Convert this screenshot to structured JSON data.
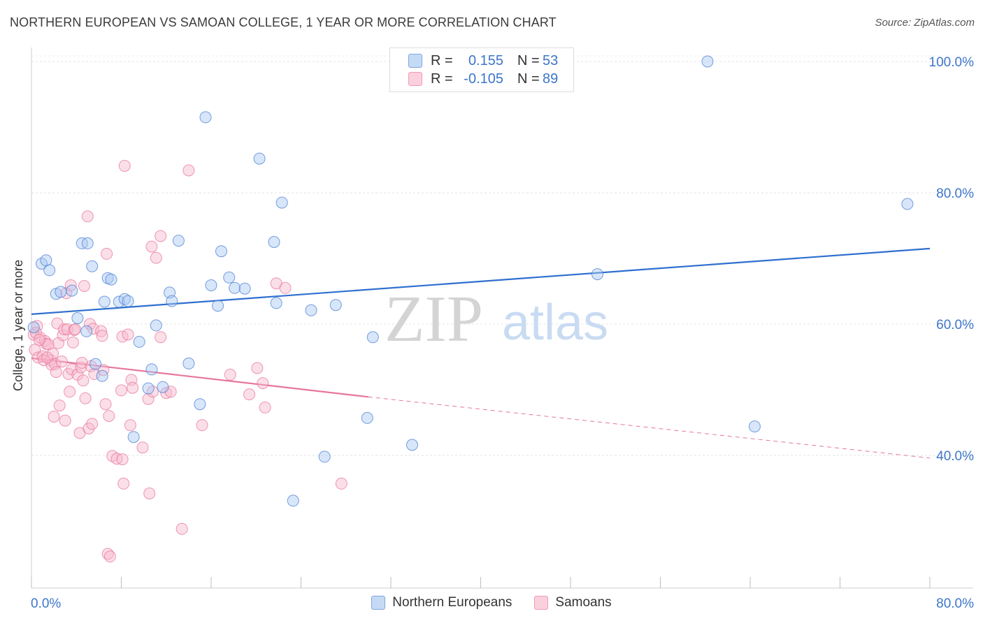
{
  "title": "NORTHERN EUROPEAN VS SAMOAN COLLEGE, 1 YEAR OR MORE CORRELATION CHART",
  "source": "Source: ZipAtlas.com",
  "watermark": {
    "zip": "ZIP",
    "atlas": "atlas"
  },
  "legend_top": {
    "rows": [
      {
        "r_label": "R =",
        "r_value": "0.155",
        "n_label": "N =",
        "n_value": "53",
        "color": "#a9c8f2"
      },
      {
        "r_label": "R =",
        "r_value": "-0.105",
        "n_label": "N =",
        "n_value": "89",
        "color": "#f7b9cc"
      }
    ]
  },
  "legend_bottom": [
    {
      "label": "Northern Europeans",
      "color": "#a9c8f2"
    },
    {
      "label": "Samoans",
      "color": "#f7b9cc"
    }
  ],
  "chart_data": {
    "type": "scatter",
    "title": "NORTHERN EUROPEAN VS SAMOAN COLLEGE, 1 YEAR OR MORE CORRELATION CHART",
    "xlabel": "",
    "ylabel": "College, 1 year or more",
    "xlim": [
      0,
      80
    ],
    "ylim": [
      20,
      102
    ],
    "x_tick_labels": [
      "0.0%",
      "80.0%"
    ],
    "y_tick_labels": [
      "40.0%",
      "60.0%",
      "80.0%",
      "100.0%"
    ],
    "y_ticks": [
      40,
      60,
      80,
      100
    ],
    "grid": true,
    "series": [
      {
        "name": "Northern Europeans",
        "color": "#4a7fd4",
        "fill": "#a9c8f2",
        "points": [
          [
            0.2,
            59.5
          ],
          [
            0.9,
            69.2
          ],
          [
            1.3,
            69.7
          ],
          [
            1.6,
            68.2
          ],
          [
            2.2,
            64.6
          ],
          [
            2.6,
            64.9
          ],
          [
            3.6,
            65.1
          ],
          [
            4.5,
            72.3
          ],
          [
            4.1,
            60.9
          ],
          [
            5.0,
            72.3
          ],
          [
            4.9,
            58.9
          ],
          [
            5.4,
            68.8
          ],
          [
            5.7,
            53.9
          ],
          [
            6.3,
            52.1
          ],
          [
            6.8,
            67.0
          ],
          [
            6.5,
            63.4
          ],
          [
            7.1,
            66.8
          ],
          [
            7.8,
            63.4
          ],
          [
            8.3,
            63.8
          ],
          [
            8.6,
            63.5
          ],
          [
            9.1,
            42.8
          ],
          [
            9.6,
            57.3
          ],
          [
            10.4,
            50.2
          ],
          [
            10.7,
            53.1
          ],
          [
            11.1,
            59.8
          ],
          [
            11.7,
            50.4
          ],
          [
            12.3,
            64.8
          ],
          [
            12.5,
            63.5
          ],
          [
            13.1,
            72.7
          ],
          [
            14.0,
            54.0
          ],
          [
            15.0,
            47.8
          ],
          [
            15.5,
            91.5
          ],
          [
            16.0,
            65.9
          ],
          [
            16.6,
            62.8
          ],
          [
            16.9,
            71.1
          ],
          [
            17.6,
            67.1
          ],
          [
            18.1,
            65.5
          ],
          [
            19.0,
            65.4
          ],
          [
            20.3,
            85.2
          ],
          [
            21.8,
            63.2
          ],
          [
            21.6,
            72.5
          ],
          [
            22.3,
            78.5
          ],
          [
            23.3,
            33.1
          ],
          [
            24.9,
            62.1
          ],
          [
            26.1,
            39.8
          ],
          [
            27.1,
            62.9
          ],
          [
            29.9,
            45.7
          ],
          [
            30.4,
            58.0
          ],
          [
            33.9,
            41.6
          ],
          [
            50.4,
            67.6
          ],
          [
            60.2,
            100.0
          ],
          [
            64.4,
            44.4
          ],
          [
            78.0,
            78.3
          ]
        ]
      },
      {
        "name": "Samoans",
        "color": "#e8769b",
        "fill": "#f7b9cc",
        "points": [
          [
            0.2,
            58.4
          ],
          [
            0.3,
            56.1
          ],
          [
            0.5,
            59.7
          ],
          [
            0.6,
            54.9
          ],
          [
            0.8,
            57.9
          ],
          [
            1.0,
            55.1
          ],
          [
            1.1,
            54.5
          ],
          [
            1.2,
            57.4
          ],
          [
            1.3,
            57.0
          ],
          [
            1.5,
            56.9
          ],
          [
            1.7,
            54.5
          ],
          [
            1.8,
            53.8
          ],
          [
            1.9,
            55.5
          ],
          [
            2.0,
            45.9
          ],
          [
            2.1,
            53.9
          ],
          [
            2.2,
            52.7
          ],
          [
            2.3,
            60.1
          ],
          [
            2.4,
            57.1
          ],
          [
            2.5,
            47.6
          ],
          [
            2.7,
            54.3
          ],
          [
            2.8,
            58.3
          ],
          [
            2.9,
            59.2
          ],
          [
            3.0,
            45.3
          ],
          [
            3.1,
            64.7
          ],
          [
            3.2,
            59.2
          ],
          [
            3.3,
            52.4
          ],
          [
            3.4,
            49.7
          ],
          [
            3.5,
            65.9
          ],
          [
            3.6,
            53.1
          ],
          [
            3.7,
            57.2
          ],
          [
            3.8,
            59.1
          ],
          [
            3.9,
            59.2
          ],
          [
            4.1,
            52.3
          ],
          [
            4.3,
            43.4
          ],
          [
            4.4,
            53.4
          ],
          [
            4.5,
            54.1
          ],
          [
            4.6,
            51.4
          ],
          [
            4.7,
            65.8
          ],
          [
            4.8,
            48.7
          ],
          [
            5.0,
            76.4
          ],
          [
            5.1,
            44.1
          ],
          [
            5.2,
            60.0
          ],
          [
            5.3,
            53.6
          ],
          [
            5.4,
            44.8
          ],
          [
            5.5,
            59.3
          ],
          [
            5.6,
            52.4
          ],
          [
            6.2,
            58.9
          ],
          [
            6.3,
            58.2
          ],
          [
            6.4,
            53.0
          ],
          [
            6.6,
            47.8
          ],
          [
            6.7,
            70.7
          ],
          [
            6.8,
            25.0
          ],
          [
            6.9,
            46.0
          ],
          [
            7.0,
            24.6
          ],
          [
            7.2,
            39.9
          ],
          [
            7.6,
            39.5
          ],
          [
            8.0,
            49.9
          ],
          [
            8.1,
            39.4
          ],
          [
            8.1,
            58.1
          ],
          [
            8.2,
            35.7
          ],
          [
            8.3,
            84.1
          ],
          [
            8.6,
            58.4
          ],
          [
            8.8,
            44.6
          ],
          [
            8.9,
            51.5
          ],
          [
            9.0,
            50.3
          ],
          [
            9.9,
            41.2
          ],
          [
            10.4,
            48.6
          ],
          [
            10.5,
            34.2
          ],
          [
            10.7,
            71.8
          ],
          [
            10.8,
            49.7
          ],
          [
            11.1,
            70.1
          ],
          [
            11.5,
            73.4
          ],
          [
            11.5,
            58.0
          ],
          [
            12.0,
            49.5
          ],
          [
            12.4,
            49.7
          ],
          [
            13.4,
            28.8
          ],
          [
            14.0,
            83.4
          ],
          [
            15.2,
            44.6
          ],
          [
            17.7,
            52.3
          ],
          [
            19.4,
            49.3
          ],
          [
            20.1,
            53.3
          ],
          [
            20.6,
            51.0
          ],
          [
            20.8,
            47.3
          ],
          [
            21.8,
            66.2
          ],
          [
            22.6,
            65.5
          ],
          [
            27.6,
            35.7
          ],
          [
            0.4,
            58.7
          ],
          [
            1.4,
            54.9
          ],
          [
            0.7,
            57.6
          ]
        ]
      }
    ],
    "trendlines": [
      {
        "series": "Northern Europeans",
        "x": [
          0,
          80
        ],
        "y": [
          61.5,
          71.5
        ],
        "style": "solid"
      },
      {
        "series": "Samoans",
        "x": [
          0,
          30
        ],
        "y": [
          54.8,
          48.9
        ],
        "style": "solid"
      },
      {
        "series": "Samoans",
        "x": [
          30,
          80
        ],
        "y": [
          48.9,
          39.6
        ],
        "style": "dashed"
      }
    ]
  }
}
